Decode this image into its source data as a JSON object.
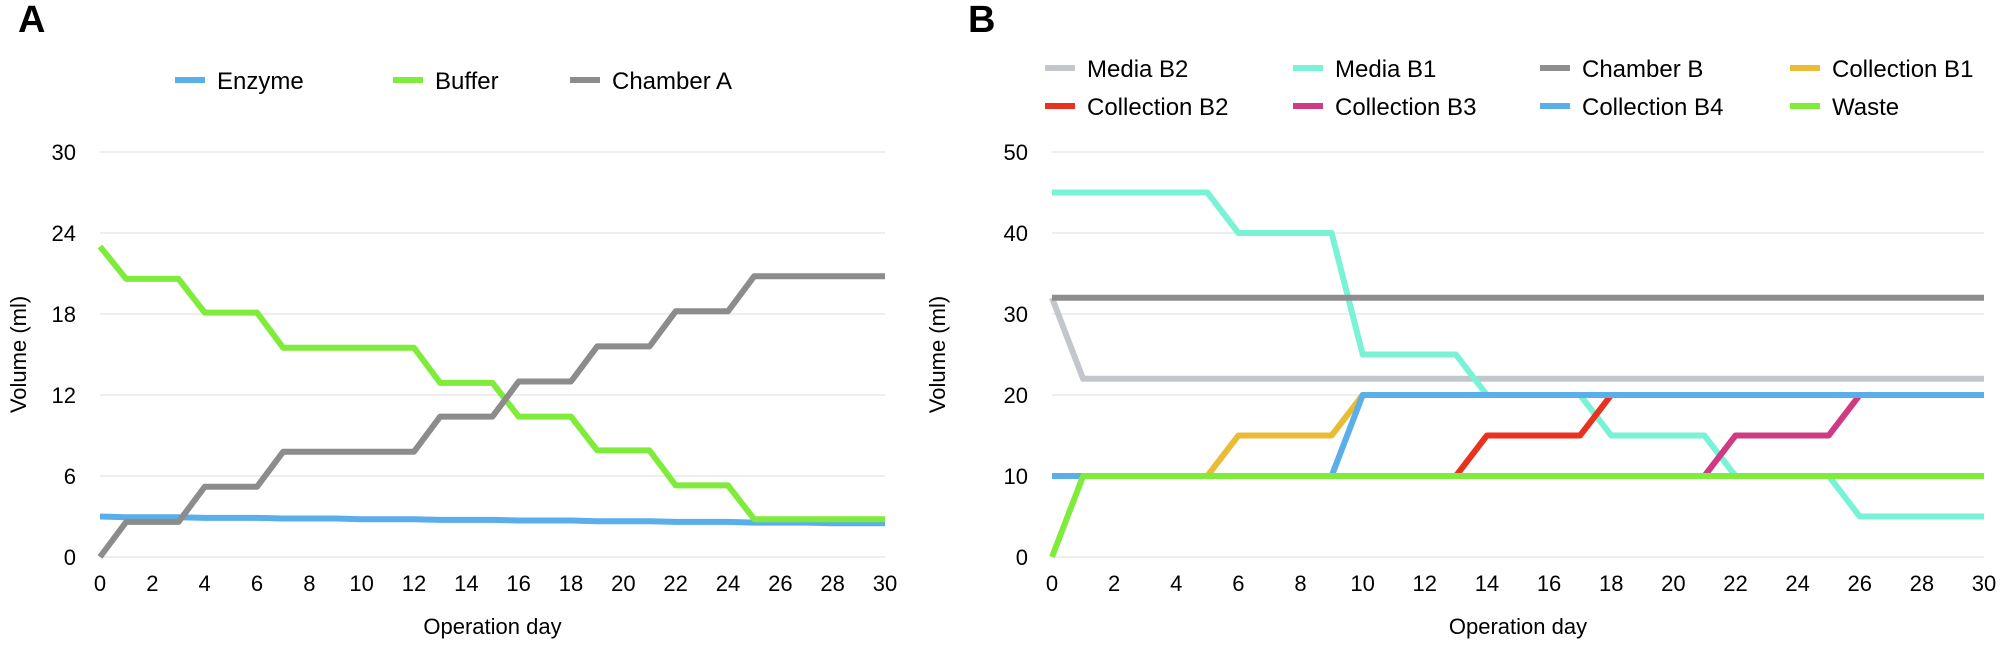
{
  "chart_data": [
    {
      "panel": "A",
      "type": "line",
      "xlabel": "Operation day",
      "ylabel": "Volume (ml)",
      "xlim": [
        0,
        30
      ],
      "ylim": [
        0,
        30
      ],
      "xticks": [
        0,
        2,
        4,
        6,
        8,
        10,
        12,
        14,
        16,
        18,
        20,
        22,
        24,
        26,
        28,
        30
      ],
      "yticks": [
        0,
        6,
        12,
        18,
        24,
        30
      ],
      "grid": "horizontal",
      "legend": "top",
      "series": [
        {
          "name": "Enzyme",
          "color": "#5aaeea",
          "x": [
            0,
            1,
            3,
            4,
            6,
            7,
            9,
            10,
            12,
            13,
            15,
            16,
            18,
            19,
            21,
            22,
            24,
            25,
            27,
            28,
            30
          ],
          "y": [
            3.0,
            2.95,
            2.95,
            2.9,
            2.9,
            2.85,
            2.85,
            2.8,
            2.8,
            2.75,
            2.75,
            2.7,
            2.7,
            2.65,
            2.65,
            2.6,
            2.6,
            2.55,
            2.55,
            2.5,
            2.5
          ]
        },
        {
          "name": "Buffer",
          "color": "#7fec3c",
          "x": [
            0,
            1,
            3,
            4,
            6,
            7,
            12,
            13,
            15,
            16,
            18,
            19,
            21,
            22,
            24,
            25,
            30
          ],
          "y": [
            23,
            20.6,
            20.6,
            18.1,
            18.1,
            15.5,
            15.5,
            12.9,
            12.9,
            10.4,
            10.4,
            7.9,
            7.9,
            5.3,
            5.3,
            2.8,
            2.8
          ]
        },
        {
          "name": "Chamber A",
          "color": "#8c8c8c",
          "x": [
            0,
            1,
            3,
            4,
            6,
            7,
            12,
            13,
            15,
            16,
            18,
            19,
            21,
            22,
            24,
            25,
            30
          ],
          "y": [
            0,
            2.6,
            2.6,
            5.2,
            5.2,
            7.8,
            7.8,
            10.4,
            10.4,
            13.0,
            13.0,
            15.6,
            15.6,
            18.2,
            18.2,
            20.8,
            20.8
          ]
        }
      ]
    },
    {
      "panel": "B",
      "type": "line",
      "xlabel": "Operation day",
      "ylabel": "Volume (ml)",
      "xlim": [
        0,
        30
      ],
      "ylim": [
        0,
        50
      ],
      "xticks": [
        0,
        2,
        4,
        6,
        8,
        10,
        12,
        14,
        16,
        18,
        20,
        22,
        24,
        26,
        28,
        30
      ],
      "yticks": [
        0,
        10,
        20,
        30,
        40,
        50
      ],
      "grid": "horizontal",
      "legend": "top",
      "series": [
        {
          "name": "Media B2",
          "color": "#c3c6cc",
          "x": [
            0,
            1,
            30
          ],
          "y": [
            32,
            22,
            22
          ]
        },
        {
          "name": "Media B1",
          "color": "#79f2d6",
          "x": [
            0,
            5,
            6,
            9,
            10,
            13,
            14,
            17,
            18,
            21,
            22,
            25,
            26,
            30
          ],
          "y": [
            45,
            45,
            40,
            40,
            25,
            25,
            20,
            20,
            15,
            15,
            10,
            10,
            5,
            5
          ]
        },
        {
          "name": "Chamber B",
          "color": "#8e8e8e",
          "x": [
            0,
            30
          ],
          "y": [
            32,
            32
          ]
        },
        {
          "name": "Collection B1",
          "color": "#eabb35",
          "x": [
            0,
            5,
            6,
            9,
            10,
            30
          ],
          "y": [
            10,
            10,
            15,
            15,
            20,
            20
          ]
        },
        {
          "name": "Collection B2",
          "color": "#e8321f",
          "x": [
            0,
            13,
            14,
            17,
            18,
            30
          ],
          "y": [
            10,
            10,
            15,
            15,
            20,
            20
          ]
        },
        {
          "name": "Collection B3",
          "color": "#cf3a83",
          "x": [
            0,
            21,
            22,
            25,
            26,
            30
          ],
          "y": [
            10,
            10,
            15,
            15,
            20,
            20
          ]
        },
        {
          "name": "Collection B4",
          "color": "#5aaeea",
          "x": [
            0,
            9,
            10,
            30
          ],
          "y": [
            10,
            10,
            20,
            20
          ]
        },
        {
          "name": "Waste",
          "color": "#7fec3c",
          "x": [
            0,
            1,
            30
          ],
          "y": [
            0,
            10,
            10
          ]
        }
      ]
    }
  ]
}
